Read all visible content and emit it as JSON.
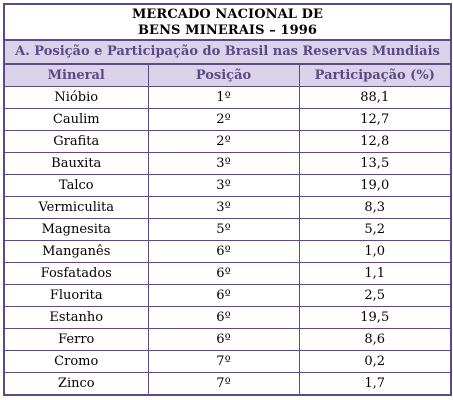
{
  "title": {
    "line1": "MERCADO NACIONAL DE",
    "line2": "BENS MINERAIS – 1996"
  },
  "subtitle": "A. Posição e Participação do Brasil nas Reservas Mundiais",
  "columns": [
    "Mineral",
    "Posição",
    "Participação (%)"
  ],
  "rows": [
    [
      "Nióbio",
      "1º",
      "88,1"
    ],
    [
      "Caulim",
      "2º",
      "12,7"
    ],
    [
      "Grafita",
      "2º",
      "12,8"
    ],
    [
      "Bauxita",
      "3º",
      "13,5"
    ],
    [
      "Talco",
      "3º",
      "19,0"
    ],
    [
      "Vermiculita",
      "3º",
      "8,3"
    ],
    [
      "Magnesita",
      "5º",
      "5,2"
    ],
    [
      "Manganês",
      "6º",
      "1,0"
    ],
    [
      "Fosfatados",
      "6º",
      "1,1"
    ],
    [
      "Fluorita",
      "6º",
      "2,5"
    ],
    [
      "Estanho",
      "6º",
      "19,5"
    ],
    [
      "Ferro",
      "6º",
      "8,6"
    ],
    [
      "Cromo",
      "7º",
      "0,2"
    ],
    [
      "Zinco",
      "7º",
      "1,7"
    ]
  ],
  "colors": {
    "border": "#5b4a86",
    "header_bg": "#d9d2e9",
    "header_text": "#5b4a86"
  }
}
